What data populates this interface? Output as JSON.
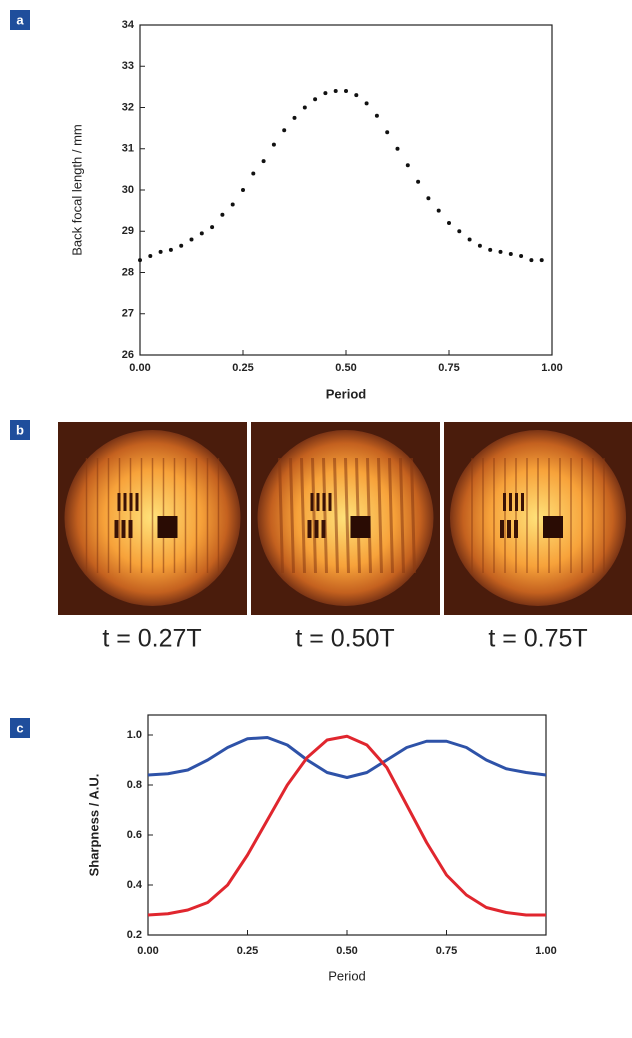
{
  "panel_labels": [
    "a",
    "b",
    "c"
  ],
  "image_captions": [
    "t = 0.27T",
    "t = 0.50T",
    "t = 0.75T"
  ],
  "chart_data": [
    {
      "type": "scatter",
      "xlabel": "Period",
      "ylabel": "Back focal length / mm",
      "color": "#111111",
      "x": [
        0,
        0.025,
        0.05,
        0.075,
        0.1,
        0.125,
        0.15,
        0.175,
        0.2,
        0.225,
        0.25,
        0.275,
        0.3,
        0.325,
        0.35,
        0.375,
        0.4,
        0.425,
        0.45,
        0.475,
        0.5,
        0.525,
        0.55,
        0.575,
        0.6,
        0.625,
        0.65,
        0.675,
        0.7,
        0.725,
        0.75,
        0.775,
        0.8,
        0.825,
        0.85,
        0.875,
        0.9,
        0.925,
        0.95,
        0.975
      ],
      "values": [
        28.3,
        28.4,
        28.5,
        28.55,
        28.65,
        28.8,
        28.95,
        29.1,
        29.4,
        29.65,
        30.0,
        30.4,
        30.7,
        31.1,
        31.45,
        31.75,
        32.0,
        32.2,
        32.35,
        32.4,
        32.4,
        32.3,
        32.1,
        31.8,
        31.4,
        31.0,
        30.6,
        30.2,
        29.8,
        29.5,
        29.2,
        29.0,
        28.8,
        28.65,
        28.55,
        28.5,
        28.45,
        28.4,
        28.3,
        28.3
      ],
      "xlim": [
        0,
        1
      ],
      "ylim": [
        26,
        34
      ],
      "xticks": [
        {
          "value": 0,
          "label": "0.00"
        },
        {
          "value": 0.25,
          "label": "0.25"
        },
        {
          "value": 0.5,
          "label": "0.50"
        },
        {
          "value": 0.75,
          "label": "0.75"
        },
        {
          "value": 1,
          "label": "1.00"
        }
      ],
      "yticks": [
        26,
        27,
        28,
        29,
        30,
        31,
        32,
        33,
        34
      ]
    },
    {
      "type": "line",
      "xlabel": "Period",
      "ylabel": "Sharpness / A.U.",
      "x": [
        0,
        0.05,
        0.1,
        0.15,
        0.2,
        0.25,
        0.3,
        0.35,
        0.4,
        0.45,
        0.5,
        0.55,
        0.6,
        0.65,
        0.7,
        0.75,
        0.8,
        0.85,
        0.9,
        0.95,
        1
      ],
      "series": [
        {
          "color": "#2e52a8",
          "values": [
            0.84,
            0.845,
            0.86,
            0.9,
            0.95,
            0.985,
            0.99,
            0.96,
            0.9,
            0.85,
            0.83,
            0.85,
            0.9,
            0.95,
            0.975,
            0.975,
            0.95,
            0.9,
            0.865,
            0.85,
            0.84
          ]
        },
        {
          "color": "#e0262e",
          "values": [
            0.28,
            0.285,
            0.3,
            0.33,
            0.4,
            0.52,
            0.66,
            0.8,
            0.91,
            0.98,
            0.995,
            0.96,
            0.87,
            0.72,
            0.57,
            0.44,
            0.36,
            0.31,
            0.29,
            0.28,
            0.28
          ]
        }
      ],
      "xlim": [
        0,
        1
      ],
      "ylim": [
        0.2,
        1.08
      ],
      "xticks": [
        {
          "value": 0,
          "label": "0.00"
        },
        {
          "value": 0.25,
          "label": "0.25"
        },
        {
          "value": 0.5,
          "label": "0.50"
        },
        {
          "value": 0.75,
          "label": "0.75"
        },
        {
          "value": 1,
          "label": "1.00"
        }
      ],
      "yticks": [
        0.2,
        0.4,
        0.6,
        0.8,
        {
          "value": 1,
          "label": "1.0"
        }
      ]
    }
  ]
}
